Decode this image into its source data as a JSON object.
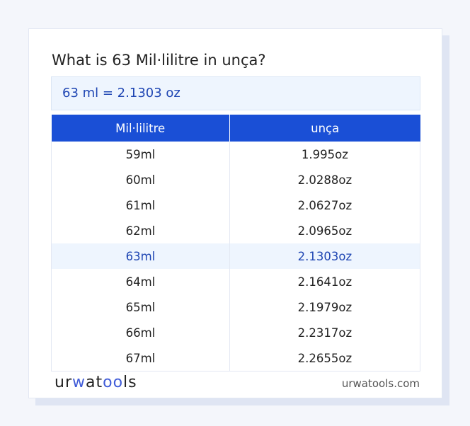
{
  "title": "What is 63 Mil·lilitre in unça?",
  "result": "63 ml = 2.1303 oz",
  "table": {
    "headers": [
      "Mil·lilitre",
      "unça"
    ],
    "rows": [
      [
        "59ml",
        "1.995oz"
      ],
      [
        "60ml",
        "2.0288oz"
      ],
      [
        "61ml",
        "2.0627oz"
      ],
      [
        "62ml",
        "2.0965oz"
      ],
      [
        "63ml",
        "2.1303oz"
      ],
      [
        "64ml",
        "2.1641oz"
      ],
      [
        "65ml",
        "2.1979oz"
      ],
      [
        "66ml",
        "2.2317oz"
      ],
      [
        "67ml",
        "2.2655oz"
      ]
    ],
    "highlighted_row": 4
  },
  "footer": {
    "logo": "urwatools",
    "site": "urwatools.com"
  },
  "colors": {
    "accent": "#1a4fd6",
    "highlight_bg": "#eef5fe"
  }
}
